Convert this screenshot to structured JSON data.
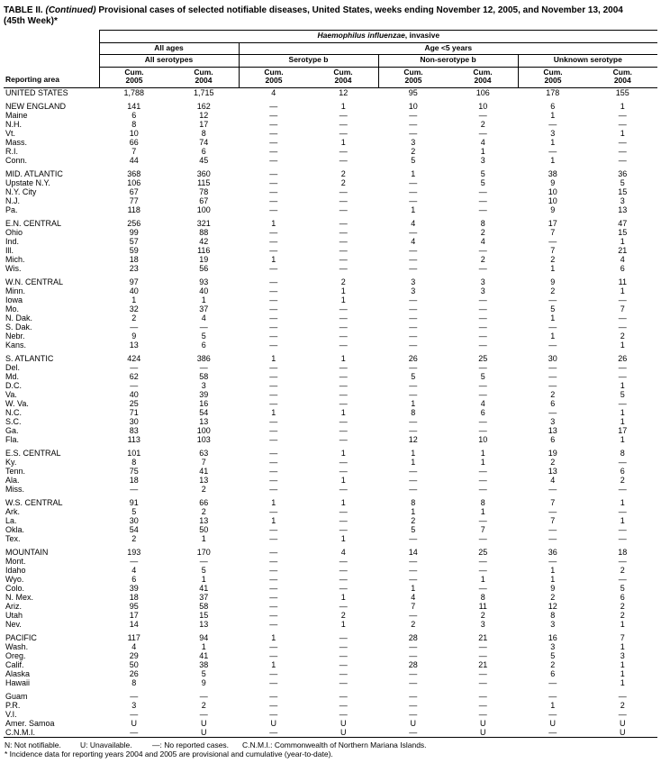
{
  "title": {
    "part1": "TABLE II. ",
    "continued": "(Continued)",
    "rest": " Provisional cases of selected notifiable diseases, United States, weeks ending November 12, 2005, and November 13, 2004",
    "line2": "(45th Week)*"
  },
  "header": {
    "disease_italic": "Haemophilus influenzae",
    "disease_rest": ", invasive",
    "all_ages": "All ages",
    "age_under5": "Age <5 years",
    "all_serotypes": "All serotypes",
    "serotype_b": "Serotype b",
    "non_serotype_b": "Non-serotype b",
    "unknown_serotype": "Unknown serotype",
    "reporting_area": "Reporting area",
    "cum": "Cum.",
    "years": [
      "2005",
      "2004",
      "2005",
      "2004",
      "2005",
      "2004",
      "2005",
      "2004"
    ]
  },
  "groups": [
    {
      "rows": [
        {
          "area": "UNITED STATES",
          "values": [
            "1,788",
            "1,715",
            "4",
            "12",
            "95",
            "106",
            "178",
            "155"
          ]
        }
      ]
    },
    {
      "rows": [
        {
          "area": "NEW ENGLAND",
          "values": [
            "141",
            "162",
            "—",
            "1",
            "10",
            "10",
            "6",
            "1"
          ]
        },
        {
          "area": "Maine",
          "values": [
            "6",
            "12",
            "—",
            "—",
            "—",
            "—",
            "1",
            "—"
          ]
        },
        {
          "area": "N.H.",
          "values": [
            "8",
            "17",
            "—",
            "—",
            "—",
            "2",
            "—",
            "—"
          ]
        },
        {
          "area": "Vt.",
          "values": [
            "10",
            "8",
            "—",
            "—",
            "—",
            "—",
            "3",
            "1"
          ]
        },
        {
          "area": "Mass.",
          "values": [
            "66",
            "74",
            "—",
            "1",
            "3",
            "4",
            "1",
            "—"
          ]
        },
        {
          "area": "R.I.",
          "values": [
            "7",
            "6",
            "—",
            "—",
            "2",
            "1",
            "—",
            "—"
          ]
        },
        {
          "area": "Conn.",
          "values": [
            "44",
            "45",
            "—",
            "—",
            "5",
            "3",
            "1",
            "—"
          ]
        }
      ]
    },
    {
      "rows": [
        {
          "area": "MID. ATLANTIC",
          "values": [
            "368",
            "360",
            "—",
            "2",
            "1",
            "5",
            "38",
            "36"
          ]
        },
        {
          "area": "Upstate N.Y.",
          "values": [
            "106",
            "115",
            "—",
            "2",
            "—",
            "5",
            "9",
            "5"
          ]
        },
        {
          "area": "N.Y. City",
          "values": [
            "67",
            "78",
            "—",
            "—",
            "—",
            "—",
            "10",
            "15"
          ]
        },
        {
          "area": "N.J.",
          "values": [
            "77",
            "67",
            "—",
            "—",
            "—",
            "—",
            "10",
            "3"
          ]
        },
        {
          "area": "Pa.",
          "values": [
            "118",
            "100",
            "—",
            "—",
            "1",
            "—",
            "9",
            "13"
          ]
        }
      ]
    },
    {
      "rows": [
        {
          "area": "E.N. CENTRAL",
          "values": [
            "256",
            "321",
            "1",
            "—",
            "4",
            "8",
            "17",
            "47"
          ]
        },
        {
          "area": "Ohio",
          "values": [
            "99",
            "88",
            "—",
            "—",
            "—",
            "2",
            "7",
            "15"
          ]
        },
        {
          "area": "Ind.",
          "values": [
            "57",
            "42",
            "—",
            "—",
            "4",
            "4",
            "—",
            "1"
          ]
        },
        {
          "area": "Ill.",
          "values": [
            "59",
            "116",
            "—",
            "—",
            "—",
            "—",
            "7",
            "21"
          ]
        },
        {
          "area": "Mich.",
          "values": [
            "18",
            "19",
            "1",
            "—",
            "—",
            "2",
            "2",
            "4"
          ]
        },
        {
          "area": "Wis.",
          "values": [
            "23",
            "56",
            "—",
            "—",
            "—",
            "—",
            "1",
            "6"
          ]
        }
      ]
    },
    {
      "rows": [
        {
          "area": "W.N. CENTRAL",
          "values": [
            "97",
            "93",
            "—",
            "2",
            "3",
            "3",
            "9",
            "11"
          ]
        },
        {
          "area": "Minn.",
          "values": [
            "40",
            "40",
            "—",
            "1",
            "3",
            "3",
            "2",
            "1"
          ]
        },
        {
          "area": "Iowa",
          "values": [
            "1",
            "1",
            "—",
            "1",
            "—",
            "—",
            "—",
            "—"
          ]
        },
        {
          "area": "Mo.",
          "values": [
            "32",
            "37",
            "—",
            "—",
            "—",
            "—",
            "5",
            "7"
          ]
        },
        {
          "area": "N. Dak.",
          "values": [
            "2",
            "4",
            "—",
            "—",
            "—",
            "—",
            "1",
            "—"
          ]
        },
        {
          "area": "S. Dak.",
          "values": [
            "—",
            "—",
            "—",
            "—",
            "—",
            "—",
            "—",
            "—"
          ]
        },
        {
          "area": "Nebr.",
          "values": [
            "9",
            "5",
            "—",
            "—",
            "—",
            "—",
            "1",
            "2"
          ]
        },
        {
          "area": "Kans.",
          "values": [
            "13",
            "6",
            "—",
            "—",
            "—",
            "—",
            "—",
            "1"
          ]
        }
      ]
    },
    {
      "rows": [
        {
          "area": "S. ATLANTIC",
          "values": [
            "424",
            "386",
            "1",
            "1",
            "26",
            "25",
            "30",
            "26"
          ]
        },
        {
          "area": "Del.",
          "values": [
            "—",
            "—",
            "—",
            "—",
            "—",
            "—",
            "—",
            "—"
          ]
        },
        {
          "area": "Md.",
          "values": [
            "62",
            "58",
            "—",
            "—",
            "5",
            "5",
            "—",
            "—"
          ]
        },
        {
          "area": "D.C.",
          "values": [
            "—",
            "3",
            "—",
            "—",
            "—",
            "—",
            "—",
            "1"
          ]
        },
        {
          "area": "Va.",
          "values": [
            "40",
            "39",
            "—",
            "—",
            "—",
            "—",
            "2",
            "5"
          ]
        },
        {
          "area": "W. Va.",
          "values": [
            "25",
            "16",
            "—",
            "—",
            "1",
            "4",
            "6",
            "—"
          ]
        },
        {
          "area": "N.C.",
          "values": [
            "71",
            "54",
            "1",
            "1",
            "8",
            "6",
            "—",
            "1"
          ]
        },
        {
          "area": "S.C.",
          "values": [
            "30",
            "13",
            "—",
            "—",
            "—",
            "—",
            "3",
            "1"
          ]
        },
        {
          "area": "Ga.",
          "values": [
            "83",
            "100",
            "—",
            "—",
            "—",
            "—",
            "13",
            "17"
          ]
        },
        {
          "area": "Fla.",
          "values": [
            "113",
            "103",
            "—",
            "—",
            "12",
            "10",
            "6",
            "1"
          ]
        }
      ]
    },
    {
      "rows": [
        {
          "area": "E.S. CENTRAL",
          "values": [
            "101",
            "63",
            "—",
            "1",
            "1",
            "1",
            "19",
            "8"
          ]
        },
        {
          "area": "Ky.",
          "values": [
            "8",
            "7",
            "—",
            "—",
            "1",
            "1",
            "2",
            "—"
          ]
        },
        {
          "area": "Tenn.",
          "values": [
            "75",
            "41",
            "—",
            "—",
            "—",
            "—",
            "13",
            "6"
          ]
        },
        {
          "area": "Ala.",
          "values": [
            "18",
            "13",
            "—",
            "1",
            "—",
            "—",
            "4",
            "2"
          ]
        },
        {
          "area": "Miss.",
          "values": [
            "—",
            "2",
            "—",
            "—",
            "—",
            "—",
            "—",
            "—"
          ]
        }
      ]
    },
    {
      "rows": [
        {
          "area": "W.S. CENTRAL",
          "values": [
            "91",
            "66",
            "1",
            "1",
            "8",
            "8",
            "7",
            "1"
          ]
        },
        {
          "area": "Ark.",
          "values": [
            "5",
            "2",
            "—",
            "—",
            "1",
            "1",
            "—",
            "—"
          ]
        },
        {
          "area": "La.",
          "values": [
            "30",
            "13",
            "1",
            "—",
            "2",
            "—",
            "7",
            "1"
          ]
        },
        {
          "area": "Okla.",
          "values": [
            "54",
            "50",
            "—",
            "—",
            "5",
            "7",
            "—",
            "—"
          ]
        },
        {
          "area": "Tex.",
          "values": [
            "2",
            "1",
            "—",
            "1",
            "—",
            "—",
            "—",
            "—"
          ]
        }
      ]
    },
    {
      "rows": [
        {
          "area": "MOUNTAIN",
          "values": [
            "193",
            "170",
            "—",
            "4",
            "14",
            "25",
            "36",
            "18"
          ]
        },
        {
          "area": "Mont.",
          "values": [
            "—",
            "—",
            "—",
            "—",
            "—",
            "—",
            "—",
            "—"
          ]
        },
        {
          "area": "Idaho",
          "values": [
            "4",
            "5",
            "—",
            "—",
            "—",
            "—",
            "1",
            "2"
          ]
        },
        {
          "area": "Wyo.",
          "values": [
            "6",
            "1",
            "—",
            "—",
            "—",
            "1",
            "1",
            "—"
          ]
        },
        {
          "area": "Colo.",
          "values": [
            "39",
            "41",
            "—",
            "—",
            "1",
            "—",
            "9",
            "5"
          ]
        },
        {
          "area": "N. Mex.",
          "values": [
            "18",
            "37",
            "—",
            "1",
            "4",
            "8",
            "2",
            "6"
          ]
        },
        {
          "area": "Ariz.",
          "values": [
            "95",
            "58",
            "—",
            "—",
            "7",
            "11",
            "12",
            "2"
          ]
        },
        {
          "area": "Utah",
          "values": [
            "17",
            "15",
            "—",
            "2",
            "—",
            "2",
            "8",
            "2"
          ]
        },
        {
          "area": "Nev.",
          "values": [
            "14",
            "13",
            "—",
            "1",
            "2",
            "3",
            "3",
            "1"
          ]
        }
      ]
    },
    {
      "rows": [
        {
          "area": "PACIFIC",
          "values": [
            "117",
            "94",
            "1",
            "—",
            "28",
            "21",
            "16",
            "7"
          ]
        },
        {
          "area": "Wash.",
          "values": [
            "4",
            "1",
            "—",
            "—",
            "—",
            "—",
            "3",
            "1"
          ]
        },
        {
          "area": "Oreg.",
          "values": [
            "29",
            "41",
            "—",
            "—",
            "—",
            "—",
            "5",
            "3"
          ]
        },
        {
          "area": "Calif.",
          "values": [
            "50",
            "38",
            "1",
            "—",
            "28",
            "21",
            "2",
            "1"
          ]
        },
        {
          "area": "Alaska",
          "values": [
            "26",
            "5",
            "—",
            "—",
            "—",
            "—",
            "6",
            "1"
          ]
        },
        {
          "area": "Hawaii",
          "values": [
            "8",
            "9",
            "—",
            "—",
            "—",
            "—",
            "—",
            "1"
          ]
        }
      ]
    },
    {
      "rows": [
        {
          "area": "Guam",
          "values": [
            "—",
            "—",
            "—",
            "—",
            "—",
            "—",
            "—",
            "—"
          ]
        },
        {
          "area": "P.R.",
          "values": [
            "3",
            "2",
            "—",
            "—",
            "—",
            "—",
            "1",
            "2"
          ]
        },
        {
          "area": "V.I.",
          "values": [
            "—",
            "—",
            "—",
            "—",
            "—",
            "—",
            "—",
            "—"
          ]
        },
        {
          "area": "Amer. Samoa",
          "values": [
            "U",
            "U",
            "U",
            "U",
            "U",
            "U",
            "U",
            "U"
          ]
        },
        {
          "area": "C.N.M.I.",
          "values": [
            "—",
            "U",
            "—",
            "U",
            "—",
            "U",
            "—",
            "U"
          ]
        }
      ]
    }
  ],
  "footnotes": {
    "n": "N: Not notifiable.",
    "u": "U: Unavailable.",
    "dash": "—: No reported cases.",
    "cnmi": "C.N.M.I.: Commonwealth of Northern Mariana Islands.",
    "line2": "* Incidence data for reporting years 2004 and 2005 are provisional and cumulative (year-to-date)."
  }
}
